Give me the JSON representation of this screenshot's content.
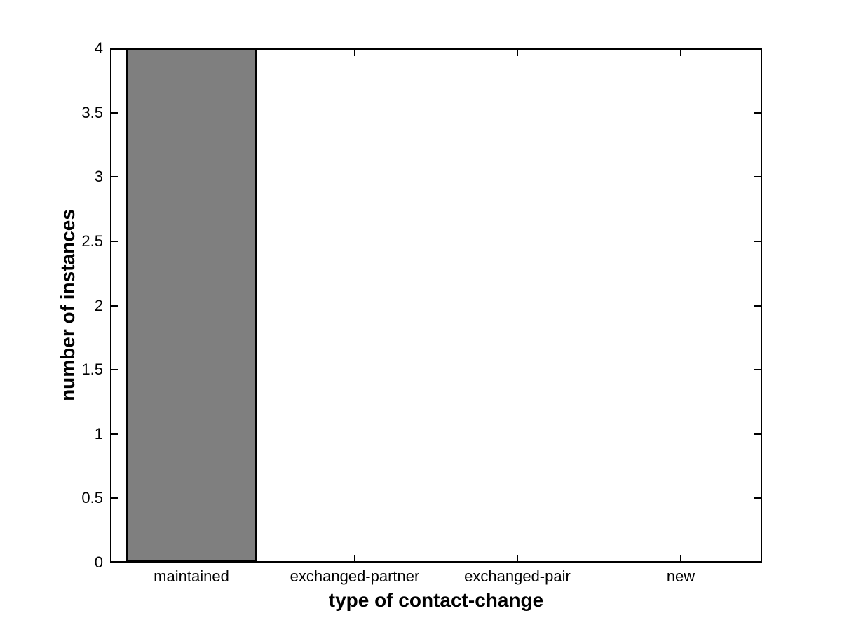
{
  "chart_data": {
    "type": "bar",
    "categories": [
      "maintained",
      "exchanged-partner",
      "exchanged-pair",
      "new"
    ],
    "values": [
      4,
      0,
      0,
      0
    ],
    "title": "",
    "xlabel": "type of contact-change",
    "ylabel": "number of instances",
    "ylim": [
      0,
      4
    ],
    "yticks": [
      0,
      0.5,
      1,
      1.5,
      2,
      2.5,
      3,
      3.5,
      4
    ],
    "ytick_labels": [
      "0",
      "0.5",
      "1",
      "1.5",
      "2",
      "2.5",
      "3",
      "3.5",
      "4"
    ],
    "bar_width_fraction": 0.8,
    "bar_color": "#7f7f7f",
    "bar_edge_color": "#000000",
    "axis_color": "#000000",
    "background_color": "#ffffff",
    "grid": false,
    "legend_position": "none",
    "box": true,
    "tick_direction": "in"
  }
}
